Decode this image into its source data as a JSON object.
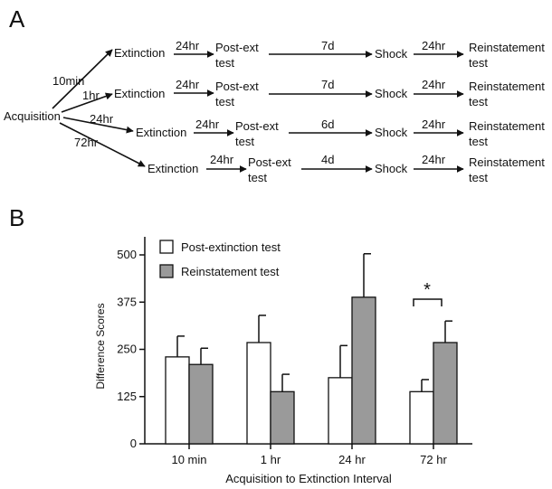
{
  "panel_a": {
    "label": "A",
    "start": "Acquisition",
    "rows": [
      {
        "interval": "10min",
        "extinction": "Extinction",
        "ext_delay": "24hr",
        "post_line1": "Post-ext",
        "post_line2": "test",
        "wait": "7d",
        "shock": "Shock",
        "reinst_delay": "24hr",
        "reinst_line1": "Reinstatement",
        "reinst_line2": "test"
      },
      {
        "interval": "1hr",
        "extinction": "Extinction",
        "ext_delay": "24hr",
        "post_line1": "Post-ext",
        "post_line2": "test",
        "wait": "7d",
        "shock": "Shock",
        "reinst_delay": "24hr",
        "reinst_line1": "Reinstatement",
        "reinst_line2": "test"
      },
      {
        "interval": "24hr",
        "extinction": "Extinction",
        "ext_delay": "24hr",
        "post_line1": "Post-ext",
        "post_line2": "test",
        "wait": "6d",
        "shock": "Shock",
        "reinst_delay": "24hr",
        "reinst_line1": "Reinstatement",
        "reinst_line2": "test"
      },
      {
        "interval": "72hr",
        "extinction": "Extinction",
        "ext_delay": "24hr",
        "post_line1": "Post-ext",
        "post_line2": "test",
        "wait": "4d",
        "shock": "Shock",
        "reinst_delay": "24hr",
        "reinst_line1": "Reinstatement",
        "reinst_line2": "test"
      }
    ]
  },
  "panel_b": {
    "label": "B",
    "significance_marker": "*"
  },
  "chart_data": {
    "type": "bar",
    "categories": [
      "10 min",
      "1 hr",
      "24 hr",
      "72 hr"
    ],
    "series": [
      {
        "name": "Post-extinction test",
        "color": "#ffffff",
        "values": [
          230,
          268,
          175,
          138
        ],
        "error": [
          55,
          72,
          85,
          32
        ]
      },
      {
        "name": "Reinstatement test",
        "color": "#9a9a9a",
        "values": [
          210,
          138,
          388,
          268
        ],
        "error": [
          43,
          46,
          115,
          57
        ]
      }
    ],
    "xlabel": "Acquisition to Extinction Interval",
    "ylabel": "Difference Scores",
    "ylim": [
      0,
      500
    ],
    "yticks": [
      0,
      125,
      250,
      375,
      500
    ],
    "legend": "top-left",
    "grid": false,
    "annotations": [
      {
        "category": "72 hr",
        "text": "*",
        "type": "significance-bracket"
      }
    ]
  }
}
